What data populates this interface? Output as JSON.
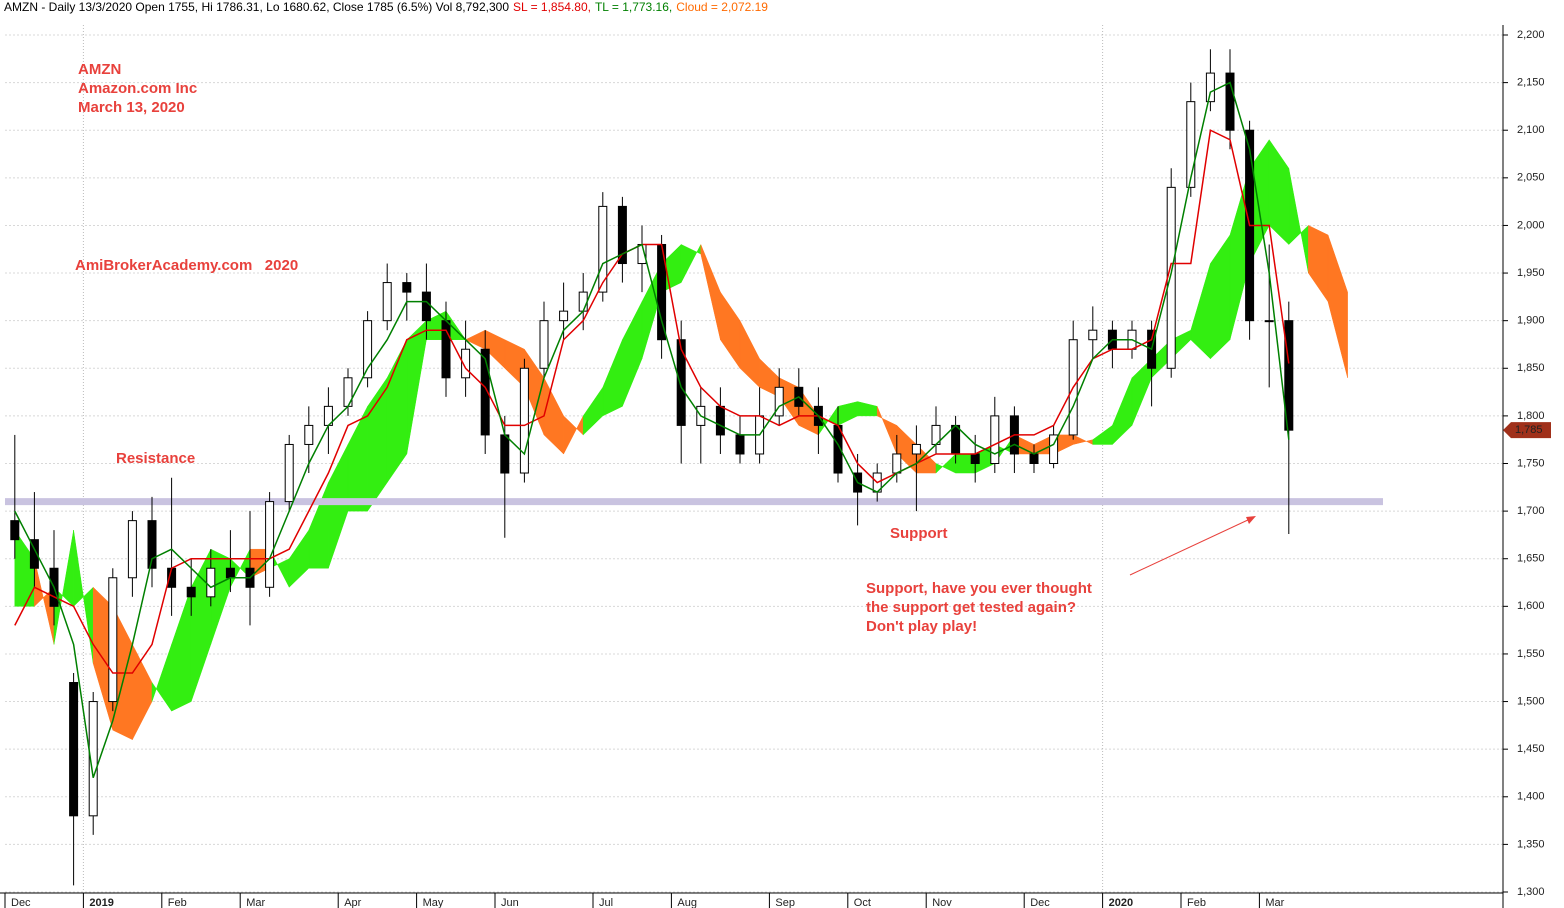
{
  "chart_data": {
    "type": "candlestick",
    "header": [
      {
        "text": "AMZN - Daily 13/3/2020 Open 1755, Hi 1786.31, Lo 1680.62, Close 1785 (6.5%) Vol 8,792,300",
        "color": "#000000"
      },
      {
        "text": "SL = 1,854.80,",
        "color": "#e00000"
      },
      {
        "text": "TL = 1,773.16,",
        "color": "#008000"
      },
      {
        "text": "Cloud = 2,072.19",
        "color": "#ff6a00"
      }
    ],
    "annotations": [
      "AMZN",
      "Amazon.com Inc",
      "March 13, 2020",
      "AmiBrokerAcademy.com   2020",
      "Resistance",
      "Support",
      "Support, have you ever thought",
      "the support get tested again?",
      "Don't play play!"
    ],
    "categories": [
      "Dec",
      null,
      null,
      null,
      "2019",
      null,
      null,
      null,
      "Feb",
      null,
      null,
      null,
      "Mar",
      null,
      null,
      null,
      null,
      "Apr",
      null,
      null,
      null,
      "May",
      null,
      null,
      null,
      "Jun",
      null,
      null,
      null,
      null,
      "Jul",
      null,
      null,
      null,
      "Aug",
      null,
      null,
      null,
      null,
      "Sep",
      null,
      null,
      null,
      "Oct",
      null,
      null,
      null,
      "Nov",
      null,
      null,
      null,
      null,
      "Dec",
      null,
      null,
      null,
      "2020",
      null,
      null,
      null,
      "Feb",
      null,
      null,
      null,
      "Mar",
      null,
      null,
      null,
      null
    ],
    "open": [
      1690,
      1670,
      1640,
      1520,
      1380,
      1500,
      1630,
      1690,
      1640,
      1620,
      1610,
      1640,
      1640,
      1620,
      1710,
      1770,
      1790,
      1810,
      1840,
      1900,
      1940,
      1930,
      1900,
      1840,
      1870,
      1780,
      1740,
      1850,
      1900,
      1910,
      1930,
      2020,
      1960,
      1980,
      1880,
      1790,
      1810,
      1780,
      1760,
      1800,
      1830,
      1810,
      1790,
      1740,
      1720,
      1740,
      1760,
      1770,
      1790,
      1760,
      1750,
      1800,
      1760,
      1750,
      1780,
      1880,
      1890,
      1870,
      1890,
      1850,
      2040,
      2130,
      2160,
      2100,
      1900,
      1900,
      null,
      null,
      null
    ],
    "high": [
      1780,
      1720,
      1680,
      1530,
      1510,
      1640,
      1700,
      1715,
      1735,
      1650,
      1660,
      1680,
      1700,
      1720,
      1780,
      1810,
      1830,
      1850,
      1910,
      1960,
      1950,
      1960,
      1920,
      1900,
      1890,
      1800,
      1860,
      1920,
      1940,
      1950,
      2035,
      2030,
      2000,
      1990,
      1900,
      1830,
      1830,
      1800,
      1830,
      1850,
      1850,
      1830,
      1810,
      1760,
      1750,
      1780,
      1790,
      1810,
      1800,
      1780,
      1820,
      1810,
      1770,
      1790,
      1900,
      1915,
      1900,
      1900,
      1900,
      2060,
      2150,
      2185,
      2185,
      2110,
      1980,
      1920,
      null,
      null,
      null
    ],
    "low": [
      1650,
      1620,
      1580,
      1307,
      1360,
      1490,
      1610,
      1620,
      1590,
      1590,
      1600,
      1615,
      1580,
      1610,
      1700,
      1740,
      1760,
      1800,
      1830,
      1890,
      1900,
      1880,
      1820,
      1820,
      1760,
      1672,
      1730,
      1840,
      1880,
      1890,
      1920,
      1940,
      1930,
      1860,
      1750,
      1750,
      1760,
      1750,
      1750,
      1790,
      1800,
      1760,
      1730,
      1685,
      1710,
      1730,
      1700,
      1760,
      1750,
      1730,
      1740,
      1740,
      1740,
      1745,
      1775,
      1860,
      1850,
      1860,
      1810,
      1840,
      2030,
      2120,
      2080,
      1880,
      1830,
      1676,
      null,
      null,
      null
    ],
    "close": [
      1670,
      1640,
      1600,
      1380,
      1500,
      1630,
      1690,
      1640,
      1620,
      1610,
      1640,
      1630,
      1620,
      1710,
      1770,
      1790,
      1810,
      1840,
      1900,
      1940,
      1930,
      1900,
      1840,
      1870,
      1780,
      1740,
      1850,
      1900,
      1910,
      1930,
      2020,
      1960,
      1980,
      1880,
      1790,
      1810,
      1780,
      1760,
      1800,
      1830,
      1810,
      1790,
      1740,
      1720,
      1740,
      1760,
      1770,
      1790,
      1760,
      1750,
      1800,
      1760,
      1750,
      1780,
      1880,
      1890,
      1870,
      1890,
      1850,
      2040,
      2130,
      2160,
      2100,
      1900,
      1900,
      1785,
      null,
      null,
      null
    ],
    "tl": [
      1700,
      1660,
      1620,
      1560,
      1420,
      1480,
      1560,
      1650,
      1660,
      1640,
      1620,
      1630,
      1630,
      1650,
      1700,
      1750,
      1790,
      1810,
      1850,
      1880,
      1920,
      1920,
      1900,
      1880,
      1860,
      1780,
      1760,
      1840,
      1890,
      1910,
      1960,
      1970,
      1980,
      1900,
      1830,
      1800,
      1790,
      1780,
      1780,
      1810,
      1820,
      1800,
      1770,
      1730,
      1720,
      1740,
      1750,
      1770,
      1790,
      1770,
      1760,
      1770,
      1760,
      1770,
      1810,
      1860,
      1880,
      1880,
      1870,
      1950,
      2050,
      2140,
      2150,
      2080,
      1950,
      1775,
      null,
      null,
      null
    ],
    "sl": [
      1580,
      1620,
      1610,
      1600,
      1560,
      1530,
      1530,
      1560,
      1640,
      1650,
      1650,
      1650,
      1650,
      1650,
      1660,
      1700,
      1740,
      1790,
      1800,
      1830,
      1880,
      1890,
      1890,
      1850,
      1830,
      1790,
      1790,
      1800,
      1880,
      1900,
      1940,
      1970,
      1980,
      1980,
      1870,
      1830,
      1810,
      1800,
      1800,
      1790,
      1800,
      1800,
      1790,
      1750,
      1730,
      1740,
      1750,
      1760,
      1760,
      1760,
      1770,
      1780,
      1780,
      1790,
      1830,
      1860,
      1870,
      1870,
      1880,
      1960,
      1960,
      2100,
      2090,
      2000,
      2000,
      1855,
      null,
      null,
      null
    ],
    "span_a": [
      1680,
      1650,
      1560,
      1680,
      1540,
      1470,
      1460,
      1500,
      1560,
      1620,
      1660,
      1650,
      1630,
      1640,
      1650,
      1680,
      1730,
      1770,
      1810,
      1840,
      1880,
      1900,
      1910,
      1880,
      1870,
      1850,
      1830,
      1780,
      1760,
      1800,
      1830,
      1880,
      1920,
      1960,
      1980,
      1970,
      1880,
      1850,
      1830,
      1820,
      1790,
      1780,
      1810,
      1815,
      1810,
      1760,
      1740,
      1740,
      1760,
      1760,
      1770,
      1760,
      1760,
      1760,
      1770,
      1775,
      1790,
      1840,
      1860,
      1880,
      1890,
      1960,
      1990,
      2060,
      2090,
      2060,
      1950,
      1920,
      1840
    ],
    "span_b": [
      1600,
      1600,
      1620,
      1600,
      1620,
      1600,
      1560,
      1520,
      1490,
      1500,
      1560,
      1620,
      1660,
      1660,
      1620,
      1640,
      1640,
      1700,
      1700,
      1730,
      1760,
      1880,
      1880,
      1880,
      1890,
      1880,
      1870,
      1840,
      1800,
      1780,
      1800,
      1810,
      1860,
      1930,
      1940,
      1980,
      1930,
      1900,
      1860,
      1840,
      1830,
      1800,
      1790,
      1800,
      1800,
      1790,
      1770,
      1750,
      1740,
      1740,
      1750,
      1780,
      1770,
      1780,
      1780,
      1770,
      1770,
      1790,
      1840,
      1860,
      1880,
      1860,
      1880,
      1960,
      2000,
      1980,
      2000,
      1990,
      1930
    ],
    "colors": {
      "tl": "#008000",
      "sl": "#e00000",
      "cloud_up": "#33ee11",
      "cloud_down": "#ff7722",
      "support": "#c9c3e0",
      "last_price": "#a0301a"
    },
    "support_level": 1710,
    "last_price": {
      "value": 1785,
      "label": "1,785"
    },
    "ylim": [
      1300,
      2200
    ],
    "yticks": [
      {
        "value": 1300,
        "label": "1,300"
      },
      {
        "value": 1350,
        "label": "1,350"
      },
      {
        "value": 1400,
        "label": "1,400"
      },
      {
        "value": 1450,
        "label": "1,450"
      },
      {
        "value": 1500,
        "label": "1,500"
      },
      {
        "value": 1550,
        "label": "1,550"
      },
      {
        "value": 1600,
        "label": "1,600"
      },
      {
        "value": 1650,
        "label": "1,650"
      },
      {
        "value": 1700,
        "label": "1,700"
      },
      {
        "value": 1750,
        "label": "1,750"
      },
      {
        "value": 1800,
        "label": "1,800"
      },
      {
        "value": 1850,
        "label": "1,850"
      },
      {
        "value": 1900,
        "label": "1,900"
      },
      {
        "value": 1950,
        "label": "1,950"
      },
      {
        "value": 2000,
        "label": "2,000"
      },
      {
        "value": 2050,
        "label": "2,050"
      },
      {
        "value": 2100,
        "label": "2,100"
      },
      {
        "value": 2150,
        "label": "2,150"
      },
      {
        "value": 2200,
        "label": "2,200"
      }
    ],
    "grid": true
  }
}
